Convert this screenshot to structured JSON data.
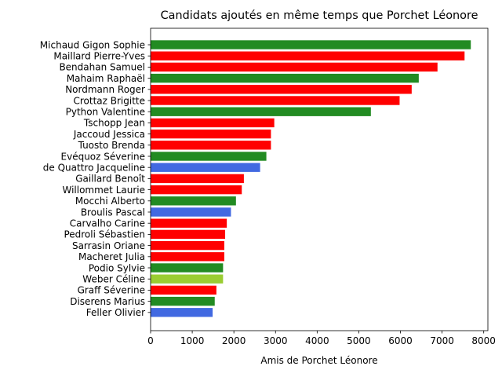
{
  "chart_data": {
    "type": "bar",
    "orientation": "horizontal",
    "title": "Candidats ajoutés en même temps que Porchet Léonore",
    "xlabel": "Amis de Porchet Léonore",
    "ylabel": "",
    "xlim": [
      0,
      8100
    ],
    "xticks": [
      0,
      1000,
      2000,
      3000,
      4000,
      5000,
      6000,
      7000,
      8000
    ],
    "xtick_labels": [
      "0",
      "1000",
      "2000",
      "3000",
      "4000",
      "5000",
      "6000",
      "7000",
      "8000"
    ],
    "grid": false,
    "bars": [
      {
        "label": "Michaud Gigon Sophie",
        "value": 7690,
        "color": "#228b22"
      },
      {
        "label": "Maillard Pierre-Yves",
        "value": 7540,
        "color": "#ff0000"
      },
      {
        "label": "Bendahan Samuel",
        "value": 6890,
        "color": "#ff0000"
      },
      {
        "label": "Mahaim Raphaël",
        "value": 6440,
        "color": "#228b22"
      },
      {
        "label": "Nordmann Roger",
        "value": 6270,
        "color": "#ff0000"
      },
      {
        "label": "Crottaz Brigitte",
        "value": 5980,
        "color": "#ff0000"
      },
      {
        "label": "Python Valentine",
        "value": 5290,
        "color": "#228b22"
      },
      {
        "label": "Tschopp Jean",
        "value": 2970,
        "color": "#ff0000"
      },
      {
        "label": "Jaccoud Jessica",
        "value": 2890,
        "color": "#ff0000"
      },
      {
        "label": "Tuosto Brenda",
        "value": 2890,
        "color": "#ff0000"
      },
      {
        "label": "Evéquoz Séverine",
        "value": 2780,
        "color": "#228b22"
      },
      {
        "label": "de Quattro Jacqueline",
        "value": 2630,
        "color": "#4169e1"
      },
      {
        "label": "Gaillard Benoît",
        "value": 2240,
        "color": "#ff0000"
      },
      {
        "label": "Willommet Laurie",
        "value": 2190,
        "color": "#ff0000"
      },
      {
        "label": "Mocchi Alberto",
        "value": 2050,
        "color": "#228b22"
      },
      {
        "label": "Broulis Pascal",
        "value": 1930,
        "color": "#4169e1"
      },
      {
        "label": "Carvalho Carine",
        "value": 1830,
        "color": "#ff0000"
      },
      {
        "label": "Pedroli Sébastien",
        "value": 1790,
        "color": "#ff0000"
      },
      {
        "label": "Sarrasin Oriane",
        "value": 1770,
        "color": "#ff0000"
      },
      {
        "label": "Macheret Julia",
        "value": 1770,
        "color": "#ff0000"
      },
      {
        "label": "Podio Sylvie",
        "value": 1740,
        "color": "#228b22"
      },
      {
        "label": "Weber Céline",
        "value": 1740,
        "color": "#9acd32"
      },
      {
        "label": "Graff Séverine",
        "value": 1580,
        "color": "#ff0000"
      },
      {
        "label": "Diserens Marius",
        "value": 1540,
        "color": "#228b22"
      },
      {
        "label": "Feller Olivier",
        "value": 1490,
        "color": "#4169e1"
      }
    ]
  }
}
